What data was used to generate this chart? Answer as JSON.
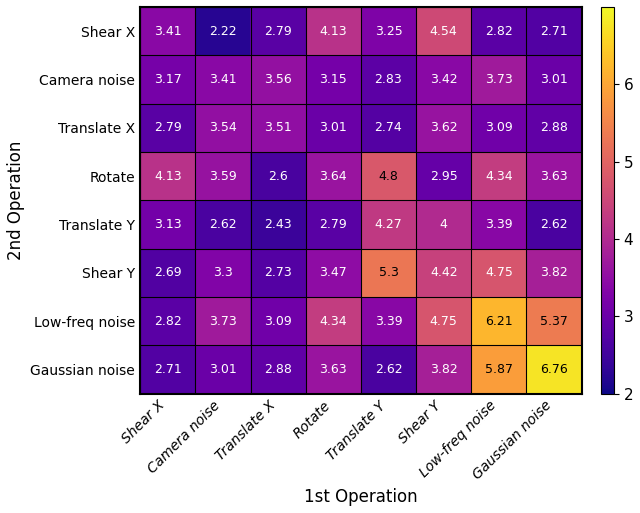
{
  "labels": [
    "Shear X",
    "Camera noise",
    "Translate X",
    "Rotate",
    "Translate Y",
    "Shear Y",
    "Low-freq noise",
    "Gaussian noise"
  ],
  "values": [
    [
      3.41,
      2.22,
      2.79,
      4.13,
      3.25,
      4.54,
      2.82,
      2.71
    ],
    [
      3.17,
      3.41,
      3.56,
      3.15,
      2.83,
      3.42,
      3.73,
      3.01
    ],
    [
      2.79,
      3.54,
      3.51,
      3.01,
      2.74,
      3.62,
      3.09,
      2.88
    ],
    [
      4.13,
      3.59,
      2.6,
      3.64,
      4.8,
      2.95,
      4.34,
      3.63
    ],
    [
      3.13,
      2.62,
      2.43,
      2.79,
      4.27,
      4.0,
      3.39,
      2.62
    ],
    [
      2.69,
      3.3,
      2.73,
      3.47,
      5.3,
      4.42,
      4.75,
      3.82
    ],
    [
      2.82,
      3.73,
      3.09,
      4.34,
      3.39,
      4.75,
      6.21,
      5.37
    ],
    [
      2.71,
      3.01,
      2.88,
      3.63,
      2.62,
      3.82,
      5.87,
      6.76
    ]
  ],
  "xlabel": "1st Operation",
  "ylabel": "2nd Operation",
  "cmap": "plasma",
  "vmin": 2,
  "vmax": 7,
  "colorbar_ticks": [
    2,
    3,
    4,
    5,
    6
  ],
  "text_color_threshold": 4.8,
  "fontsize_cell": 9,
  "fontsize_labels": 11,
  "fontsize_axis_label": 12
}
